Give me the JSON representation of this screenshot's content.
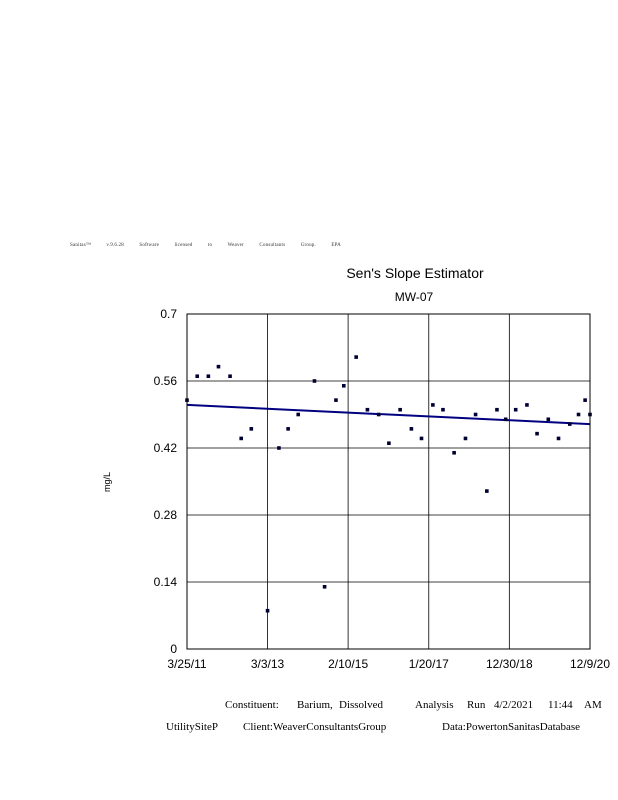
{
  "banner": {
    "parts": [
      "Sanitas™",
      "v.9.6.28",
      "Software",
      "licensed",
      "to",
      "Weaver",
      "Consultants",
      "Group.",
      "EPA"
    ]
  },
  "chart_data": {
    "type": "scatter",
    "title": "Sen's Slope Estimator",
    "subtitle": "MW-07",
    "xlabel": "",
    "ylabel": "mg/L",
    "xlim": [
      "2011-03-25",
      "2020-12-09"
    ],
    "ylim": [
      0,
      0.7
    ],
    "yticks": [
      0,
      0.14,
      0.28,
      0.42,
      0.56,
      0.7
    ],
    "ytick_labels": [
      "0",
      "0.14",
      "0.28",
      "0.42",
      "0.56",
      "0.7"
    ],
    "xticks": [
      "2011-03-25",
      "2013-03-03",
      "2015-02-10",
      "2017-01-20",
      "2018-12-30",
      "2020-12-09"
    ],
    "xtick_labels": [
      "3/25/11",
      "3/3/13",
      "2/10/15",
      "1/20/17",
      "12/30/18",
      "12/9/20"
    ],
    "grid": true,
    "points": [
      {
        "x": "2011-03-25",
        "y": 0.52
      },
      {
        "x": "2011-06-23",
        "y": 0.57
      },
      {
        "x": "2011-09-29",
        "y": 0.57
      },
      {
        "x": "2011-12-27",
        "y": 0.59
      },
      {
        "x": "2012-04-07",
        "y": 0.57
      },
      {
        "x": "2012-07-14",
        "y": 0.44
      },
      {
        "x": "2012-10-11",
        "y": 0.46
      },
      {
        "x": "2013-03-03",
        "y": 0.08
      },
      {
        "x": "2013-06-11",
        "y": 0.42
      },
      {
        "x": "2013-08-31",
        "y": 0.46
      },
      {
        "x": "2013-11-28",
        "y": 0.49
      },
      {
        "x": "2014-04-20",
        "y": 0.56
      },
      {
        "x": "2014-07-18",
        "y": 0.13
      },
      {
        "x": "2014-10-26",
        "y": 0.52
      },
      {
        "x": "2015-01-03",
        "y": 0.55
      },
      {
        "x": "2015-04-22",
        "y": 0.61
      },
      {
        "x": "2015-07-30",
        "y": 0.5
      },
      {
        "x": "2015-11-06",
        "y": 0.49
      },
      {
        "x": "2016-02-04",
        "y": 0.43
      },
      {
        "x": "2016-05-13",
        "y": 0.5
      },
      {
        "x": "2016-08-20",
        "y": 0.46
      },
      {
        "x": "2016-11-17",
        "y": 0.44
      },
      {
        "x": "2017-02-25",
        "y": 0.51
      },
      {
        "x": "2017-05-25",
        "y": 0.5
      },
      {
        "x": "2017-08-31",
        "y": 0.41
      },
      {
        "x": "2017-12-09",
        "y": 0.44
      },
      {
        "x": "2018-03-08",
        "y": 0.49
      },
      {
        "x": "2018-06-15",
        "y": 0.33
      },
      {
        "x": "2018-09-12",
        "y": 0.5
      },
      {
        "x": "2018-11-28",
        "y": 0.48
      },
      {
        "x": "2019-02-24",
        "y": 0.5
      },
      {
        "x": "2019-06-03",
        "y": 0.51
      },
      {
        "x": "2019-08-31",
        "y": 0.45
      },
      {
        "x": "2019-12-08",
        "y": 0.48
      },
      {
        "x": "2020-03-07",
        "y": 0.44
      },
      {
        "x": "2020-06-14",
        "y": 0.47
      },
      {
        "x": "2020-08-30",
        "y": 0.49
      },
      {
        "x": "2020-10-27",
        "y": 0.52
      },
      {
        "x": "2020-12-09",
        "y": 0.49
      }
    ],
    "trend_line": {
      "start": {
        "x": "2011-03-25",
        "y": 0.51
      },
      "end": {
        "x": "2020-12-09",
        "y": 0.47
      }
    },
    "colors": {
      "points": "#000033",
      "trend": "#000080",
      "grid": "#000000"
    }
  },
  "footer": {
    "constituent_label": "Constituent:",
    "constituent_name": "Barium,",
    "constituent_qualifier": "Dissolved",
    "analysis_label": "Analysis",
    "run_label": "Run",
    "run_date": "4/2/2021",
    "run_time": "11:44",
    "run_ampm": "AM",
    "site": "UtilitySiteP",
    "client": "Client:WeaverConsultantsGroup",
    "data_source": "Data:PowertonSanitasDatabase"
  }
}
